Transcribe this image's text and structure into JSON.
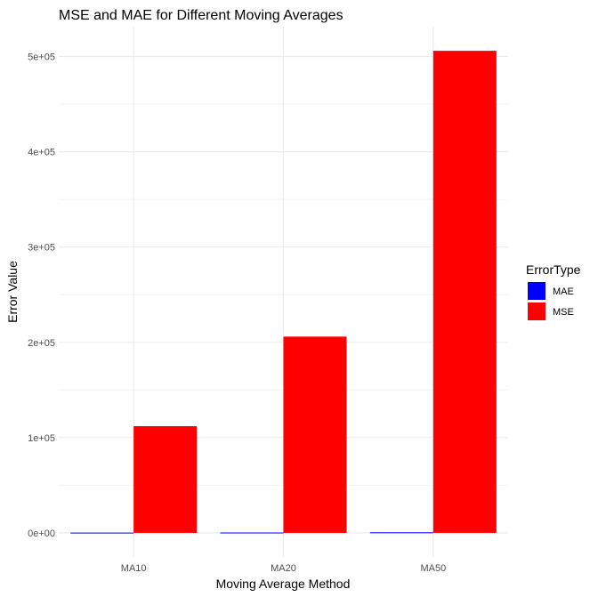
{
  "chart_data": {
    "type": "bar",
    "title": "MSE and MAE for Different Moving Averages",
    "xlabel": "Moving Average Method",
    "ylabel": "Error Value",
    "categories": [
      "MA10",
      "MA20",
      "MA50"
    ],
    "series": [
      {
        "name": "MAE",
        "color": "#0000ff",
        "values": [
          250,
          360,
          560
        ]
      },
      {
        "name": "MSE",
        "color": "#ff0000",
        "values": [
          112000,
          206000,
          506000
        ]
      }
    ],
    "ylim": [
      -25300,
      531300
    ],
    "yticks": [
      0,
      100000,
      200000,
      300000,
      400000,
      500000
    ],
    "ytick_labels": [
      "0e+00",
      "1e+05",
      "2e+05",
      "3e+05",
      "4e+05",
      "5e+05"
    ],
    "grid": true,
    "legend": {
      "title": "ErrorType",
      "position": "right"
    }
  }
}
